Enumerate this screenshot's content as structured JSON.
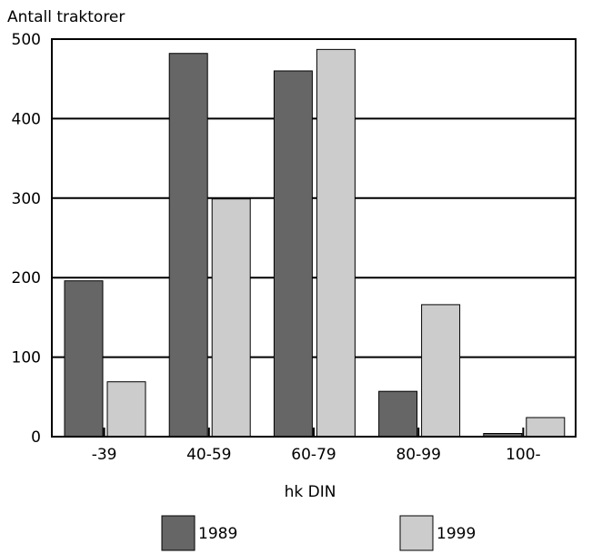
{
  "chart_data": {
    "type": "bar",
    "ylabel": "Antall traktorer",
    "xlabel": "hk DIN",
    "categories": [
      "-39",
      "40-59",
      "60-79",
      "80-99",
      "100-"
    ],
    "series": [
      {
        "name": "1989",
        "values": [
          196,
          482,
          460,
          57,
          4
        ],
        "color": "#666666"
      },
      {
        "name": "1999",
        "values": [
          69,
          299,
          487,
          166,
          24
        ],
        "color": "#cccccc"
      }
    ],
    "ylim": [
      0,
      500
    ],
    "yticks": [
      0,
      100,
      200,
      300,
      400,
      500
    ],
    "grid": true,
    "legend": "bottom"
  }
}
